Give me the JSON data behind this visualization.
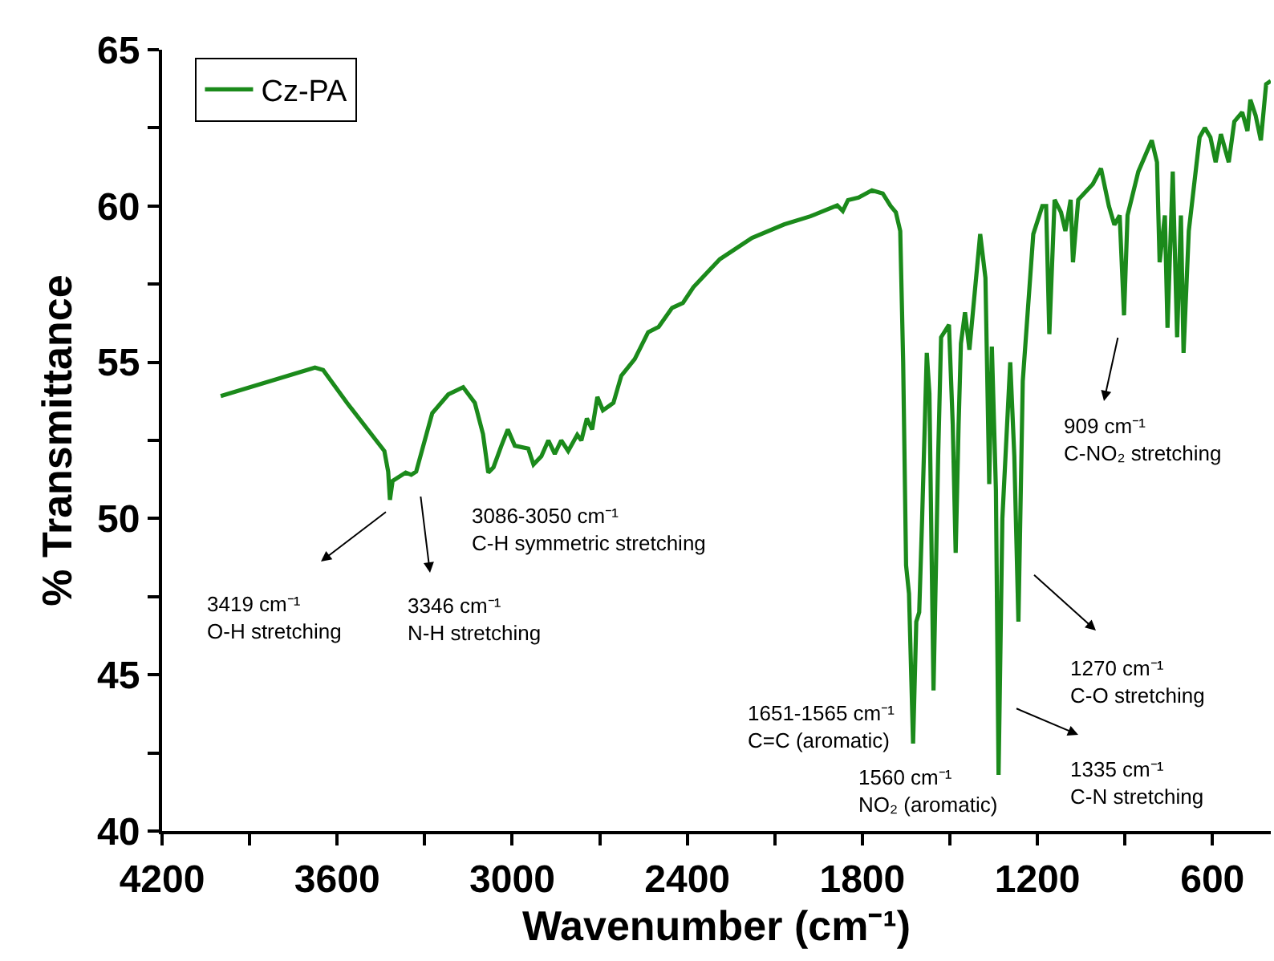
{
  "chart_data": {
    "type": "line",
    "xlabel": "Wavenumber (cm⁻¹)",
    "ylabel": "% Transmittance",
    "xlim": [
      4200,
      400
    ],
    "ylim": [
      40,
      65
    ],
    "xticks": [
      4200,
      {
        "value": 3900,
        "label": null
      },
      3600,
      {
        "value": 3300,
        "label": null
      },
      3000,
      {
        "value": 2700,
        "label": null
      },
      2400,
      {
        "value": 2100,
        "label": null
      },
      1800,
      {
        "value": 1500,
        "label": null
      },
      1200,
      {
        "value": 900,
        "label": null
      },
      600
    ],
    "yticks": [
      40,
      {
        "value": 42.5,
        "label": null
      },
      45,
      {
        "value": 47.5,
        "label": null
      },
      50,
      {
        "value": 52.5,
        "label": null
      },
      55,
      {
        "value": 57.5,
        "label": null
      },
      60,
      {
        "value": 62.5,
        "label": null
      },
      65
    ],
    "legend": "top left",
    "marker": "none",
    "line_style": "solid",
    "x": [
      3999,
      3676,
      3648,
      3566,
      3438,
      3425,
      3419,
      3410,
      3365,
      3346,
      3329,
      3274,
      3219,
      3168,
      3128,
      3100,
      3082,
      3064,
      3037,
      3015,
      2991,
      2945,
      2927,
      2900,
      2876,
      2854,
      2832,
      2808,
      2777,
      2763,
      2744,
      2726,
      2708,
      2689,
      2653,
      2626,
      2580,
      2534,
      2498,
      2452,
      2415,
      2379,
      2324,
      2288,
      2178,
      2068,
      1978,
      1886,
      1867,
      1849,
      1813,
      1767,
      1730,
      1703,
      1685,
      1670,
      1660,
      1650,
      1640,
      1626,
      1615,
      1605,
      1595,
      1579,
      1570,
      1556,
      1540,
      1530,
      1503,
      1490,
      1480,
      1470,
      1462,
      1448,
      1433,
      1396,
      1378,
      1365,
      1356,
      1342,
      1333,
      1320,
      1293,
      1279,
      1265,
      1250,
      1214,
      1183,
      1170,
      1159,
      1141,
      1119,
      1104,
      1086,
      1078,
      1060,
      1010,
      982,
      955,
      936,
      918,
      903,
      891,
      854,
      808,
      790,
      781,
      763,
      754,
      736,
      721,
      708,
      699,
      681,
      644,
      626,
      607,
      589,
      571,
      544,
      525,
      498,
      480,
      470,
      452,
      434,
      416,
      400
    ],
    "series": [
      {
        "name": "Cz-PA",
        "color": "#1b8a1b",
        "values": [
          53.92,
          54.83,
          54.75,
          53.7,
          52.16,
          51.5,
          50.6,
          51.2,
          51.47,
          51.4,
          51.5,
          53.37,
          53.97,
          54.2,
          53.7,
          52.7,
          51.47,
          51.64,
          52.33,
          52.85,
          52.33,
          52.24,
          51.73,
          51.99,
          52.5,
          52.07,
          52.5,
          52.16,
          52.68,
          52.5,
          53.2,
          52.85,
          53.89,
          53.46,
          53.7,
          54.57,
          55.1,
          55.96,
          56.13,
          56.74,
          56.9,
          57.4,
          57.95,
          58.3,
          58.98,
          59.41,
          59.67,
          60.02,
          59.84,
          60.19,
          60.27,
          60.5,
          60.4,
          60.0,
          59.8,
          59.2,
          55.0,
          48.5,
          47.6,
          42.8,
          46.7,
          47.0,
          50.0,
          55.3,
          54.0,
          44.5,
          52.0,
          55.8,
          56.2,
          53.0,
          48.9,
          53.0,
          55.6,
          56.6,
          55.4,
          59.1,
          57.7,
          51.1,
          55.5,
          50.9,
          41.8,
          50.0,
          55.0,
          52.0,
          46.7,
          54.4,
          59.1,
          60.0,
          60.0,
          55.9,
          60.2,
          59.8,
          59.2,
          60.2,
          58.2,
          60.2,
          60.7,
          61.2,
          60.0,
          59.4,
          59.7,
          56.5,
          59.7,
          61.1,
          62.1,
          61.4,
          58.2,
          59.7,
          56.1,
          61.1,
          55.8,
          59.7,
          55.3,
          59.2,
          62.2,
          62.5,
          62.2,
          61.4,
          62.3,
          61.4,
          62.7,
          63.0,
          62.4,
          63.4,
          62.9,
          62.1,
          63.9,
          64.0
        ]
      }
    ],
    "annotations": [
      "3419 cm⁻¹\nO-H stretching",
      "3346 cm⁻¹\nN-H stretching",
      "3086-3050 cm⁻¹\nC-H symmetric stretching",
      "1651-1565 cm⁻¹\nC=C (aromatic)",
      "1560 cm⁻¹\nNO₂ (aromatic)",
      "1335 cm⁻¹\nC-N stretching",
      "1270 cm⁻¹\nC-O stretching",
      "909 cm⁻¹\nC-NO₂ stretching"
    ]
  }
}
